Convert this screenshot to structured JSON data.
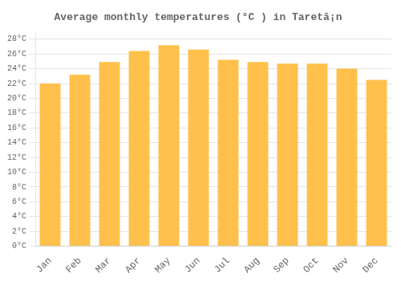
{
  "chart_data": {
    "type": "bar",
    "title": "Average monthly temperatures (°C ) in Taretã¡n",
    "categories": [
      "Jan",
      "Feb",
      "Mar",
      "Apr",
      "May",
      "Jun",
      "Jul",
      "Aug",
      "Sep",
      "Oct",
      "Nov",
      "Dec"
    ],
    "values": [
      22.0,
      23.2,
      24.9,
      26.4,
      27.2,
      26.6,
      25.2,
      24.9,
      24.7,
      24.7,
      24.0,
      22.5
    ],
    "color": "#FFC04C",
    "ylim": [
      0,
      29
    ],
    "yticks": [
      {
        "value": 0,
        "label": "0°C"
      },
      {
        "value": 2,
        "label": "2°C"
      },
      {
        "value": 4,
        "label": "4°C"
      },
      {
        "value": 6,
        "label": "6°C"
      },
      {
        "value": 8,
        "label": "8°C"
      },
      {
        "value": 10,
        "label": "10°C"
      },
      {
        "value": 12,
        "label": "12°C"
      },
      {
        "value": 14,
        "label": "14°C"
      },
      {
        "value": 16,
        "label": "16°C"
      },
      {
        "value": 18,
        "label": "18°C"
      },
      {
        "value": 20,
        "label": "20°C"
      },
      {
        "value": 22,
        "label": "22°C"
      },
      {
        "value": 24,
        "label": "24°C"
      },
      {
        "value": 26,
        "label": "26°C"
      },
      {
        "value": 28,
        "label": "28°C"
      }
    ],
    "grid": true
  }
}
